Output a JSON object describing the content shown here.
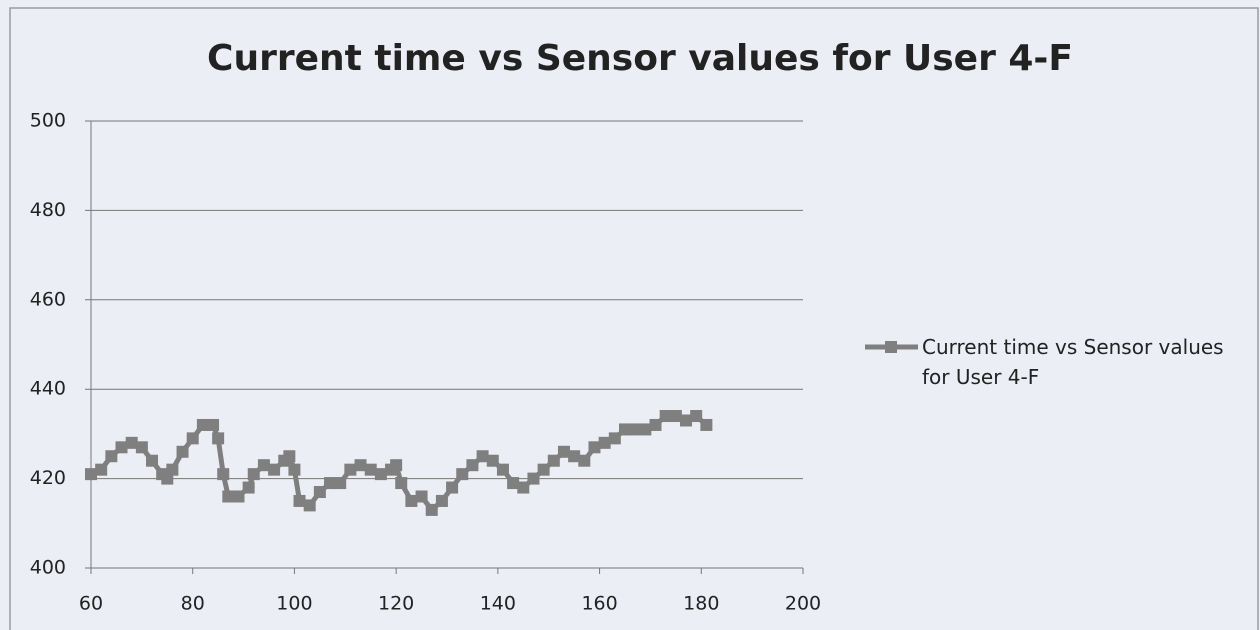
{
  "chart_data": {
    "type": "line",
    "title": "Current time vs Sensor values for User 4-F",
    "x": [
      60,
      62,
      64,
      66,
      68,
      70,
      72,
      74,
      75,
      76,
      78,
      80,
      82,
      84,
      85,
      86,
      87,
      89,
      91,
      92,
      94,
      96,
      98,
      99,
      100,
      101,
      103,
      105,
      107,
      109,
      111,
      113,
      115,
      117,
      119,
      120,
      121,
      123,
      125,
      127,
      129,
      131,
      133,
      135,
      137,
      139,
      141,
      143,
      145,
      147,
      149,
      151,
      153,
      155,
      157,
      159,
      161,
      163,
      165,
      167,
      169,
      171,
      173,
      175,
      177,
      179,
      181
    ],
    "series": [
      {
        "name": "Current time vs Sensor values for User 4-F",
        "color": "#7f7f7f",
        "values": [
          421,
          422,
          425,
          427,
          428,
          427,
          424,
          421,
          420,
          422,
          426,
          429,
          432,
          432,
          429,
          421,
          416,
          416,
          418,
          421,
          423,
          422,
          424,
          425,
          422,
          415,
          414,
          417,
          419,
          419,
          422,
          423,
          422,
          421,
          422,
          423,
          419,
          415,
          416,
          413,
          415,
          418,
          421,
          423,
          425,
          424,
          422,
          419,
          418,
          420,
          422,
          424,
          426,
          425,
          424,
          427,
          428,
          429,
          431,
          431,
          431,
          432,
          434,
          434,
          433,
          434,
          432
        ]
      }
    ],
    "xlim": [
      60,
      200
    ],
    "xticks": [
      60,
      80,
      100,
      120,
      140,
      160,
      180,
      200
    ],
    "ylim": [
      400,
      500
    ],
    "yticks": [
      400,
      420,
      440,
      460,
      480,
      500
    ],
    "grid": true,
    "legend": "right"
  }
}
